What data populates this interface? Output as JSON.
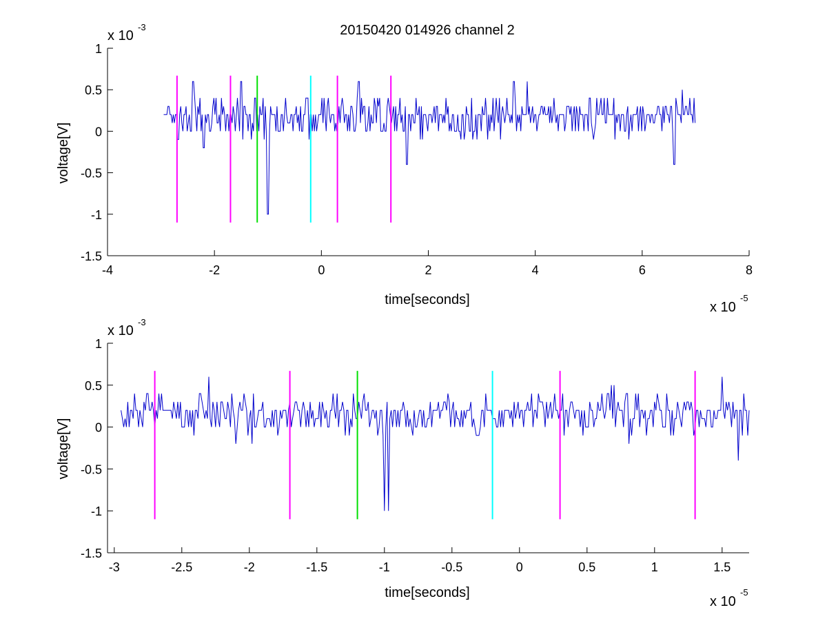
{
  "colors": {
    "trace": "#0000cc",
    "magenta": "#ff00ff",
    "green": "#00e000",
    "cyan": "#00ffff",
    "axis": "#000000"
  },
  "chart_data": [
    {
      "type": "line",
      "title": "20150420 014926 channel 2",
      "xlabel": "time[seconds]",
      "ylabel": "voltage[V]",
      "x_multiplier_base": "x 10",
      "x_multiplier_exp": "-5",
      "y_multiplier_base": "x 10",
      "y_multiplier_exp": "-3",
      "xlim": [
        -4,
        8
      ],
      "ylim": [
        -1.5,
        1
      ],
      "xticks": [
        -4,
        -2,
        0,
        2,
        4,
        6,
        8
      ],
      "xtick_labels": [
        "-4",
        "-2",
        "0",
        "2",
        "4",
        "6",
        "8"
      ],
      "yticks": [
        -1.5,
        -1,
        -0.5,
        0,
        0.5,
        1
      ],
      "ytick_labels": [
        "-1.5",
        "-1",
        "-0.5",
        "0",
        "0.5",
        "1"
      ],
      "grid": false,
      "series": [
        {
          "x_range": [
            -2.95,
            7.0
          ],
          "baseline": 0.1,
          "levels": [
            0,
            0.1,
            0.2,
            0.3,
            0.4
          ],
          "x_step": 0.02,
          "spikes": [
            [
              -2.4,
              0.6
            ],
            [
              -2.2,
              -0.2
            ],
            [
              -1.5,
              0.6
            ],
            [
              -1.0,
              -1.0
            ],
            [
              0.7,
              0.6
            ],
            [
              1.6,
              -0.4
            ],
            [
              3.6,
              0.6
            ],
            [
              3.85,
              0.6
            ],
            [
              6.6,
              -0.4
            ],
            [
              6.75,
              0.5
            ]
          ]
        }
      ],
      "markers": [
        {
          "x": -2.7,
          "y_range": [
            -1.1,
            0.67
          ],
          "color": "magenta"
        },
        {
          "x": -1.7,
          "y_range": [
            -1.1,
            0.67
          ],
          "color": "magenta"
        },
        {
          "x": -1.2,
          "y_range": [
            -1.1,
            0.67
          ],
          "color": "green"
        },
        {
          "x": -0.2,
          "y_range": [
            -1.1,
            0.67
          ],
          "color": "cyan"
        },
        {
          "x": 0.3,
          "y_range": [
            -1.1,
            0.67
          ],
          "color": "magenta"
        },
        {
          "x": 1.3,
          "y_range": [
            -1.1,
            0.67
          ],
          "color": "magenta"
        }
      ]
    },
    {
      "type": "line",
      "title": "",
      "xlabel": "time[seconds]",
      "ylabel": "voltage[V]",
      "x_multiplier_base": "x 10",
      "x_multiplier_exp": "-5",
      "y_multiplier_base": "x 10",
      "y_multiplier_exp": "-3",
      "xlim": [
        -3.05,
        1.7
      ],
      "ylim": [
        -1.5,
        1
      ],
      "xticks": [
        -3,
        -2.5,
        -2,
        -1.5,
        -1,
        -0.5,
        0,
        0.5,
        1,
        1.5
      ],
      "xtick_labels": [
        "-3",
        "-2.5",
        "-2",
        "-1.5",
        "-1",
        "-0.5",
        "0",
        "0.5",
        "1",
        "1.5"
      ],
      "yticks": [
        -1.5,
        -1,
        -0.5,
        0,
        0.5,
        1
      ],
      "ytick_labels": [
        "-1.5",
        "-1",
        "-0.5",
        "0",
        "0.5",
        "1"
      ],
      "grid": false,
      "series": [
        {
          "x_range": [
            -2.95,
            1.7
          ],
          "baseline": 0.1,
          "levels": [
            0,
            0.1,
            0.2,
            0.3,
            0.4
          ],
          "x_step": 0.01,
          "spikes": [
            [
              -2.3,
              0.6
            ],
            [
              -2.1,
              -0.2
            ],
            [
              -1.98,
              -0.2
            ],
            [
              -1.0,
              -1.0
            ],
            [
              -0.97,
              -1.0
            ],
            [
              0.65,
              0.4
            ],
            [
              0.68,
              0.5
            ],
            [
              0.7,
              0.5
            ],
            [
              0.81,
              -0.2
            ],
            [
              1.5,
              0.6
            ],
            [
              1.62,
              -0.4
            ]
          ]
        }
      ],
      "markers": [
        {
          "x": -2.7,
          "y_range": [
            -1.1,
            0.67
          ],
          "color": "magenta"
        },
        {
          "x": -1.7,
          "y_range": [
            -1.1,
            0.67
          ],
          "color": "magenta"
        },
        {
          "x": -1.2,
          "y_range": [
            -1.1,
            0.67
          ],
          "color": "green"
        },
        {
          "x": -0.2,
          "y_range": [
            -1.1,
            0.67
          ],
          "color": "cyan"
        },
        {
          "x": 0.3,
          "y_range": [
            -1.1,
            0.67
          ],
          "color": "magenta"
        },
        {
          "x": 1.3,
          "y_range": [
            -1.1,
            0.67
          ],
          "color": "magenta"
        }
      ]
    }
  ]
}
